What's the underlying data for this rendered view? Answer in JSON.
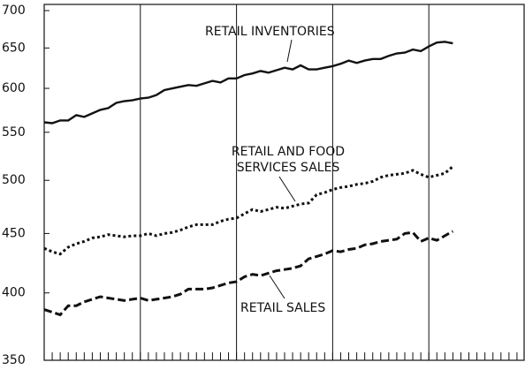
{
  "chart_data": {
    "type": "line",
    "log_scale": true,
    "grid": true,
    "categories": [
      null,
      null,
      null,
      null,
      null,
      null,
      null,
      null,
      null,
      null,
      null,
      null,
      null,
      null,
      null,
      null,
      null,
      null,
      null,
      null,
      null,
      null,
      null,
      null,
      null,
      null,
      null,
      null,
      null,
      null,
      null,
      null,
      null,
      null,
      null,
      null,
      null,
      null,
      null,
      null,
      null,
      null,
      null,
      null,
      null,
      null,
      null,
      null,
      null,
      null,
      null,
      null,
      null,
      null,
      null,
      null,
      null,
      null,
      null,
      null
    ],
    "ylim": [
      350,
      700
    ],
    "yticks": [
      350,
      400,
      450,
      500,
      550,
      600,
      650,
      700
    ],
    "series": [
      {
        "color": "#111111",
        "style": "solid",
        "values": [
          561,
          560,
          563,
          563,
          569,
          567,
          571,
          575,
          577,
          583,
          585,
          586,
          588,
          589,
          592,
          598,
          600,
          602,
          604,
          603,
          606,
          609,
          607,
          612,
          612,
          616,
          618,
          621,
          619,
          622,
          625,
          623,
          628,
          623,
          623,
          625,
          627,
          630,
          634,
          631,
          634,
          636,
          636,
          640,
          643,
          644,
          648,
          646,
          652,
          657,
          658,
          656,
          null,
          null,
          null,
          null,
          null,
          null,
          null,
          null
        ]
      },
      {
        "color": "#111111",
        "style": "dotted",
        "values": [
          437,
          434,
          432,
          438,
          441,
          443,
          446,
          447,
          449,
          448,
          447,
          448,
          448,
          450,
          448,
          450,
          451,
          453,
          456,
          458,
          458,
          458,
          461,
          463,
          464,
          468,
          472,
          470,
          472,
          474,
          473,
          475,
          477,
          478,
          486,
          488,
          491,
          493,
          494,
          496,
          497,
          499,
          503,
          505,
          506,
          507,
          510,
          506,
          503,
          505,
          507,
          514,
          null,
          null,
          null,
          null,
          null,
          null,
          null,
          null
        ]
      },
      {
        "color": "#111111",
        "style": "dashed",
        "values": [
          387,
          385,
          383,
          390,
          390,
          393,
          395,
          397,
          396,
          395,
          394,
          395,
          396,
          394,
          395,
          396,
          397,
          399,
          403,
          403,
          403,
          404,
          406,
          408,
          409,
          413,
          415,
          414,
          416,
          418,
          419,
          420,
          422,
          428,
          430,
          432,
          435,
          434,
          436,
          437,
          440,
          441,
          443,
          444,
          445,
          450,
          451,
          443,
          446,
          444,
          448,
          452,
          null,
          null,
          null,
          null,
          null,
          null,
          null,
          null
        ]
      }
    ],
    "annotations": [
      "RETAIL INVENTORIES",
      "RETAIL AND FOOD",
      "SERVICES SALES",
      "RETAIL SALES"
    ]
  }
}
